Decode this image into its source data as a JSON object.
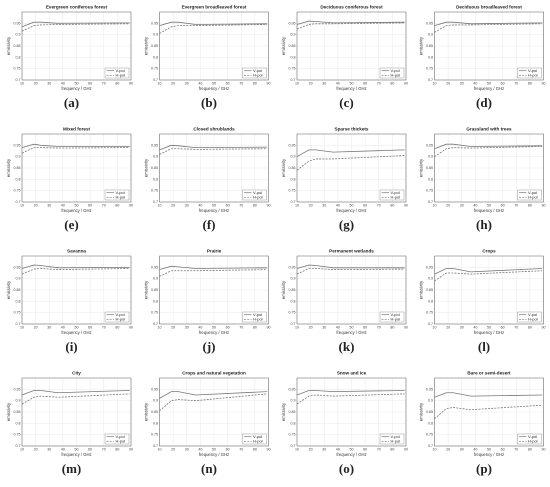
{
  "chart_data": [
    {
      "type": "line",
      "title": "Evergreen coniferous forest",
      "panel_label": "(a)",
      "xlabel": "frequency / GHz",
      "ylabel": "emissivity",
      "x": [
        10,
        18.7,
        23.8,
        36.5,
        89
      ],
      "series": [
        {
          "name": "V-pol",
          "color": "#777777",
          "dash": "solid",
          "values": [
            0.935,
            0.955,
            0.955,
            0.95,
            0.952
          ]
        },
        {
          "name": "H-pol",
          "color": "#777777",
          "dash": "dashed",
          "values": [
            0.915,
            0.94,
            0.943,
            0.945,
            0.948
          ]
        }
      ],
      "xlim": [
        10,
        90
      ],
      "ylim": [
        0.7,
        1
      ],
      "xticks": [
        10,
        20,
        30,
        40,
        50,
        60,
        70,
        80,
        90
      ],
      "yticks": [
        0.7,
        0.75,
        0.8,
        0.85,
        0.9,
        0.95
      ],
      "grid": true,
      "legend": "lower right"
    },
    {
      "type": "line",
      "title": "Evergreen broadleaved forest",
      "panel_label": "(b)",
      "xlabel": "frequency / GHz",
      "ylabel": "emissivity",
      "x": [
        10,
        18.7,
        23.8,
        36.5,
        89
      ],
      "series": [
        {
          "name": "V-pol",
          "color": "#777777",
          "dash": "solid",
          "values": [
            0.94,
            0.955,
            0.955,
            0.945,
            0.948
          ]
        },
        {
          "name": "H-pol",
          "color": "#777777",
          "dash": "dashed",
          "values": [
            0.905,
            0.935,
            0.94,
            0.94,
            0.945
          ]
        }
      ],
      "xlim": [
        10,
        90
      ],
      "ylim": [
        0.7,
        1
      ],
      "xticks": [
        10,
        20,
        30,
        40,
        50,
        60,
        70,
        80,
        90
      ],
      "yticks": [
        0.7,
        0.75,
        0.8,
        0.85,
        0.9,
        0.95
      ],
      "grid": true,
      "legend": "lower right"
    },
    {
      "type": "line",
      "title": "Deciduous coniferous forest",
      "panel_label": "(c)",
      "xlabel": "frequency / GHz",
      "ylabel": "emissivity",
      "x": [
        10,
        18.7,
        23.8,
        36.5,
        89
      ],
      "series": [
        {
          "name": "V-pol",
          "color": "#777777",
          "dash": "solid",
          "values": [
            0.945,
            0.96,
            0.958,
            0.952,
            0.955
          ]
        },
        {
          "name": "H-pol",
          "color": "#777777",
          "dash": "dashed",
          "values": [
            0.925,
            0.945,
            0.948,
            0.948,
            0.952
          ]
        }
      ],
      "xlim": [
        10,
        90
      ],
      "ylim": [
        0.7,
        1
      ],
      "xticks": [
        10,
        20,
        30,
        40,
        50,
        60,
        70,
        80,
        90
      ],
      "yticks": [
        0.7,
        0.75,
        0.8,
        0.85,
        0.9,
        0.95
      ],
      "grid": true,
      "legend": "lower right"
    },
    {
      "type": "line",
      "title": "Deciduous broadleaved forest",
      "panel_label": "(d)",
      "xlabel": "frequency / GHz",
      "ylabel": "emissivity",
      "x": [
        10,
        18.7,
        23.8,
        36.5,
        89
      ],
      "series": [
        {
          "name": "V-pol",
          "color": "#777777",
          "dash": "solid",
          "values": [
            0.94,
            0.955,
            0.955,
            0.948,
            0.952
          ]
        },
        {
          "name": "H-pol",
          "color": "#777777",
          "dash": "dashed",
          "values": [
            0.91,
            0.94,
            0.943,
            0.943,
            0.948
          ]
        }
      ],
      "xlim": [
        10,
        90
      ],
      "ylim": [
        0.7,
        1
      ],
      "xticks": [
        10,
        20,
        30,
        40,
        50,
        60,
        70,
        80,
        90
      ],
      "yticks": [
        0.7,
        0.75,
        0.8,
        0.85,
        0.9,
        0.95
      ],
      "grid": true,
      "legend": "lower right"
    },
    {
      "type": "line",
      "title": "Mixed forest",
      "panel_label": "(e)",
      "xlabel": "frequency / GHz",
      "ylabel": "emissivity",
      "x": [
        10,
        18.7,
        23.8,
        36.5,
        89
      ],
      "series": [
        {
          "name": "V-pol",
          "color": "#777777",
          "dash": "solid",
          "values": [
            0.94,
            0.955,
            0.95,
            0.945,
            0.945
          ]
        },
        {
          "name": "H-pol",
          "color": "#777777",
          "dash": "dashed",
          "values": [
            0.915,
            0.94,
            0.94,
            0.938,
            0.94
          ]
        }
      ],
      "xlim": [
        10,
        90
      ],
      "ylim": [
        0.7,
        1
      ],
      "xticks": [
        10,
        20,
        30,
        40,
        50,
        60,
        70,
        80,
        90
      ],
      "yticks": [
        0.7,
        0.75,
        0.8,
        0.85,
        0.9,
        0.95
      ],
      "grid": true,
      "legend": "lower right"
    },
    {
      "type": "line",
      "title": "Closed shrublands",
      "panel_label": "(f)",
      "xlabel": "frequency / GHz",
      "ylabel": "emissivity",
      "x": [
        10,
        18.7,
        23.8,
        36.5,
        89
      ],
      "series": [
        {
          "name": "V-pol",
          "color": "#777777",
          "dash": "solid",
          "values": [
            0.93,
            0.95,
            0.948,
            0.94,
            0.942
          ]
        },
        {
          "name": "H-pol",
          "color": "#777777",
          "dash": "dashed",
          "values": [
            0.91,
            0.935,
            0.935,
            0.932,
            0.935
          ]
        }
      ],
      "xlim": [
        10,
        90
      ],
      "ylim": [
        0.7,
        1
      ],
      "xticks": [
        10,
        20,
        30,
        40,
        50,
        60,
        70,
        80,
        90
      ],
      "yticks": [
        0.7,
        0.75,
        0.8,
        0.85,
        0.9,
        0.95
      ],
      "grid": true,
      "legend": "lower right"
    },
    {
      "type": "line",
      "title": "Sparse thickets",
      "panel_label": "(g)",
      "xlabel": "frequency / GHz",
      "ylabel": "emissivity",
      "x": [
        10,
        18.7,
        23.8,
        36.5,
        89
      ],
      "series": [
        {
          "name": "V-pol",
          "color": "#777777",
          "dash": "solid",
          "values": [
            0.9,
            0.93,
            0.93,
            0.92,
            0.93
          ]
        },
        {
          "name": "H-pol",
          "color": "#777777",
          "dash": "dashed",
          "values": [
            0.84,
            0.88,
            0.89,
            0.89,
            0.905
          ]
        }
      ],
      "xlim": [
        10,
        90
      ],
      "ylim": [
        0.7,
        1
      ],
      "xticks": [
        10,
        20,
        30,
        40,
        50,
        60,
        70,
        80,
        90
      ],
      "yticks": [
        0.7,
        0.75,
        0.8,
        0.85,
        0.9,
        0.95
      ],
      "grid": true,
      "legend": "lower right"
    },
    {
      "type": "line",
      "title": "Grassland with trees",
      "panel_label": "(h)",
      "xlabel": "frequency / GHz",
      "ylabel": "emissivity",
      "x": [
        10,
        18.7,
        23.8,
        36.5,
        89
      ],
      "series": [
        {
          "name": "V-pol",
          "color": "#777777",
          "dash": "solid",
          "values": [
            0.935,
            0.955,
            0.955,
            0.945,
            0.948
          ]
        },
        {
          "name": "H-pol",
          "color": "#777777",
          "dash": "dashed",
          "values": [
            0.9,
            0.935,
            0.94,
            0.938,
            0.945
          ]
        }
      ],
      "xlim": [
        10,
        90
      ],
      "ylim": [
        0.7,
        1
      ],
      "xticks": [
        10,
        20,
        30,
        40,
        50,
        60,
        70,
        80,
        90
      ],
      "yticks": [
        0.7,
        0.75,
        0.8,
        0.85,
        0.9,
        0.95
      ],
      "grid": true,
      "legend": "lower right"
    },
    {
      "type": "line",
      "title": "Savanna",
      "panel_label": "(i)",
      "xlabel": "frequency / GHz",
      "ylabel": "emissivity",
      "x": [
        10,
        18.7,
        23.8,
        36.5,
        89
      ],
      "series": [
        {
          "name": "V-pol",
          "color": "#777777",
          "dash": "solid",
          "values": [
            0.945,
            0.96,
            0.958,
            0.948,
            0.95
          ]
        },
        {
          "name": "H-pol",
          "color": "#777777",
          "dash": "dashed",
          "values": [
            0.92,
            0.942,
            0.945,
            0.94,
            0.945
          ]
        }
      ],
      "xlim": [
        10,
        90
      ],
      "ylim": [
        0.7,
        1
      ],
      "xticks": [
        10,
        20,
        30,
        40,
        50,
        60,
        70,
        80,
        90
      ],
      "yticks": [
        0.7,
        0.75,
        0.8,
        0.85,
        0.9,
        0.95
      ],
      "grid": true,
      "legend": "lower right"
    },
    {
      "type": "line",
      "title": "Prairie",
      "panel_label": "(j)",
      "xlabel": "frequency / GHz",
      "ylabel": "emissivity",
      "x": [
        10,
        18.7,
        23.8,
        36.5,
        89
      ],
      "series": [
        {
          "name": "V-pol",
          "color": "#777777",
          "dash": "solid",
          "values": [
            0.94,
            0.955,
            0.952,
            0.945,
            0.948
          ]
        },
        {
          "name": "H-pol",
          "color": "#777777",
          "dash": "dashed",
          "values": [
            0.91,
            0.935,
            0.935,
            0.935,
            0.94
          ]
        }
      ],
      "xlim": [
        10,
        90
      ],
      "ylim": [
        0.7,
        1
      ],
      "xticks": [
        10,
        20,
        30,
        40,
        50,
        60,
        70,
        80,
        90
      ],
      "yticks": [
        0.7,
        0.75,
        0.8,
        0.85,
        0.9,
        0.95
      ],
      "grid": true,
      "legend": "lower right"
    },
    {
      "type": "line",
      "title": "Permanent wetlands",
      "panel_label": "(k)",
      "xlabel": "frequency / GHz",
      "ylabel": "emissivity",
      "x": [
        10,
        18.7,
        23.8,
        36.5,
        89
      ],
      "series": [
        {
          "name": "V-pol",
          "color": "#777777",
          "dash": "solid",
          "values": [
            0.945,
            0.96,
            0.958,
            0.948,
            0.948
          ]
        },
        {
          "name": "H-pol",
          "color": "#777777",
          "dash": "dashed",
          "values": [
            0.92,
            0.945,
            0.945,
            0.94,
            0.942
          ]
        }
      ],
      "xlim": [
        10,
        90
      ],
      "ylim": [
        0.7,
        1
      ],
      "xticks": [
        10,
        20,
        30,
        40,
        50,
        60,
        70,
        80,
        90
      ],
      "yticks": [
        0.7,
        0.75,
        0.8,
        0.85,
        0.9,
        0.95
      ],
      "grid": true,
      "legend": "lower right"
    },
    {
      "type": "line",
      "title": "Crops",
      "panel_label": "(l)",
      "xlabel": "frequency / GHz",
      "ylabel": "emissivity",
      "x": [
        10,
        18.7,
        23.8,
        36.5,
        89
      ],
      "series": [
        {
          "name": "V-pol",
          "color": "#777777",
          "dash": "solid",
          "values": [
            0.92,
            0.945,
            0.945,
            0.93,
            0.945
          ]
        },
        {
          "name": "H-pol",
          "color": "#777777",
          "dash": "dashed",
          "values": [
            0.89,
            0.925,
            0.925,
            0.92,
            0.935
          ]
        }
      ],
      "xlim": [
        10,
        90
      ],
      "ylim": [
        0.7,
        1
      ],
      "xticks": [
        10,
        20,
        30,
        40,
        50,
        60,
        70,
        80,
        90
      ],
      "yticks": [
        0.7,
        0.75,
        0.8,
        0.85,
        0.9,
        0.95
      ],
      "grid": true,
      "legend": "lower right"
    },
    {
      "type": "line",
      "title": "City",
      "panel_label": "(m)",
      "xlabel": "frequency / GHz",
      "ylabel": "emissivity",
      "x": [
        10,
        18.7,
        23.8,
        36.5,
        89
      ],
      "series": [
        {
          "name": "V-pol",
          "color": "#777777",
          "dash": "solid",
          "values": [
            0.925,
            0.945,
            0.945,
            0.935,
            0.945
          ]
        },
        {
          "name": "H-pol",
          "color": "#777777",
          "dash": "dashed",
          "values": [
            0.885,
            0.915,
            0.92,
            0.915,
            0.93
          ]
        }
      ],
      "xlim": [
        10,
        90
      ],
      "ylim": [
        0.7,
        1
      ],
      "xticks": [
        10,
        20,
        30,
        40,
        50,
        60,
        70,
        80,
        90
      ],
      "yticks": [
        0.7,
        0.75,
        0.8,
        0.85,
        0.9,
        0.95
      ],
      "grid": true,
      "legend": "lower right"
    },
    {
      "type": "line",
      "title": "Crops and natural vegetation",
      "panel_label": "(n)",
      "xlabel": "frequency / GHz",
      "ylabel": "emissivity",
      "x": [
        10,
        18.7,
        23.8,
        36.5,
        89
      ],
      "series": [
        {
          "name": "V-pol",
          "color": "#777777",
          "dash": "solid",
          "values": [
            0.91,
            0.94,
            0.94,
            0.925,
            0.94
          ]
        },
        {
          "name": "H-pol",
          "color": "#777777",
          "dash": "dashed",
          "values": [
            0.855,
            0.9,
            0.905,
            0.9,
            0.93
          ]
        }
      ],
      "xlim": [
        10,
        90
      ],
      "ylim": [
        0.7,
        1
      ],
      "xticks": [
        10,
        20,
        30,
        40,
        50,
        60,
        70,
        80,
        90
      ],
      "yticks": [
        0.7,
        0.75,
        0.8,
        0.85,
        0.9,
        0.95
      ],
      "grid": true,
      "legend": "lower right"
    },
    {
      "type": "line",
      "title": "Snow and ice",
      "panel_label": "(o)",
      "xlabel": "frequency / GHz",
      "ylabel": "emissivity",
      "x": [
        10,
        18.7,
        23.8,
        36.5,
        89
      ],
      "series": [
        {
          "name": "V-pol",
          "color": "#777777",
          "dash": "solid",
          "values": [
            0.925,
            0.945,
            0.945,
            0.94,
            0.945
          ]
        },
        {
          "name": "H-pol",
          "color": "#777777",
          "dash": "dashed",
          "values": [
            0.885,
            0.92,
            0.925,
            0.92,
            0.93
          ]
        }
      ],
      "xlim": [
        10,
        90
      ],
      "ylim": [
        0.7,
        1
      ],
      "xticks": [
        10,
        20,
        30,
        40,
        50,
        60,
        70,
        80,
        90
      ],
      "yticks": [
        0.7,
        0.75,
        0.8,
        0.85,
        0.9,
        0.95
      ],
      "grid": true,
      "legend": "lower right"
    },
    {
      "type": "line",
      "title": "Bare or semi-desert",
      "panel_label": "(p)",
      "xlabel": "frequency / GHz",
      "ylabel": "emissivity",
      "x": [
        10,
        18.7,
        23.8,
        36.5,
        89
      ],
      "series": [
        {
          "name": "V-pol",
          "color": "#777777",
          "dash": "solid",
          "values": [
            0.915,
            0.935,
            0.935,
            0.92,
            0.925
          ]
        },
        {
          "name": "H-pol",
          "color": "#777777",
          "dash": "dashed",
          "values": [
            0.82,
            0.865,
            0.87,
            0.86,
            0.88
          ]
        }
      ],
      "xlim": [
        10,
        90
      ],
      "ylim": [
        0.7,
        1
      ],
      "xticks": [
        10,
        20,
        30,
        40,
        50,
        60,
        70,
        80,
        90
      ],
      "yticks": [
        0.7,
        0.75,
        0.8,
        0.85,
        0.9,
        0.95
      ],
      "grid": true,
      "legend": "lower right"
    }
  ]
}
